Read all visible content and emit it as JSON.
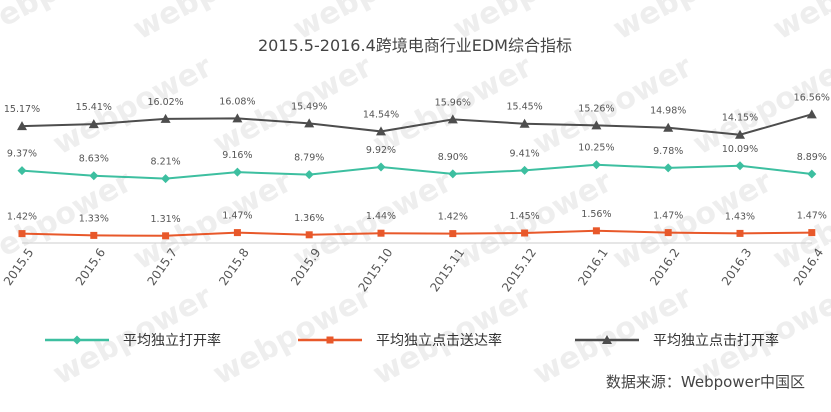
{
  "chart_data": {
    "type": "line",
    "title": "2015.5-2016.4跨境电商行业EDM综合指标",
    "categories": [
      "2015.5",
      "2015.6",
      "2015.7",
      "2015.8",
      "2015.9",
      "2015.10",
      "2015.11",
      "2015.12",
      "2016.1",
      "2016.2",
      "2016.3",
      "2016.4"
    ],
    "series": [
      {
        "name": "平均独立打开率",
        "color": "#3dbfa0",
        "marker": "diamond",
        "values": [
          9.37,
          8.63,
          8.21,
          9.16,
          8.79,
          9.92,
          8.9,
          9.41,
          10.25,
          9.78,
          10.09,
          8.89
        ],
        "labels": [
          "9.37%",
          "8.63%",
          "8.21%",
          "9.16%",
          "8.79%",
          "9.92%",
          "8.90%",
          "9.41%",
          "10.25%",
          "9.78%",
          "10.09%",
          "8.89%"
        ]
      },
      {
        "name": "平均独立点击送达率",
        "color": "#e8582a",
        "marker": "square",
        "values": [
          1.42,
          1.33,
          1.31,
          1.47,
          1.36,
          1.44,
          1.42,
          1.45,
          1.56,
          1.47,
          1.43,
          1.47
        ],
        "labels": [
          "1.42%",
          "1.33%",
          "1.31%",
          "1.47%",
          "1.36%",
          "1.44%",
          "1.42%",
          "1.45%",
          "1.56%",
          "1.47%",
          "1.43%",
          "1.47%"
        ]
      },
      {
        "name": "平均独立点击打开率",
        "color": "#4d4d4d",
        "marker": "triangle",
        "values": [
          15.17,
          15.41,
          16.02,
          16.08,
          15.49,
          14.54,
          15.96,
          15.45,
          15.26,
          14.98,
          14.15,
          16.56
        ],
        "labels": [
          "15.17%",
          "15.41%",
          "16.02%",
          "16.08%",
          "15.49%",
          "14.54%",
          "15.96%",
          "15.45%",
          "15.26%",
          "14.98%",
          "14.15%",
          "16.56%"
        ]
      }
    ],
    "legend_position": "bottom",
    "grid": false
  },
  "source": "数据来源：Webpower中国区",
  "watermark": "webpower"
}
